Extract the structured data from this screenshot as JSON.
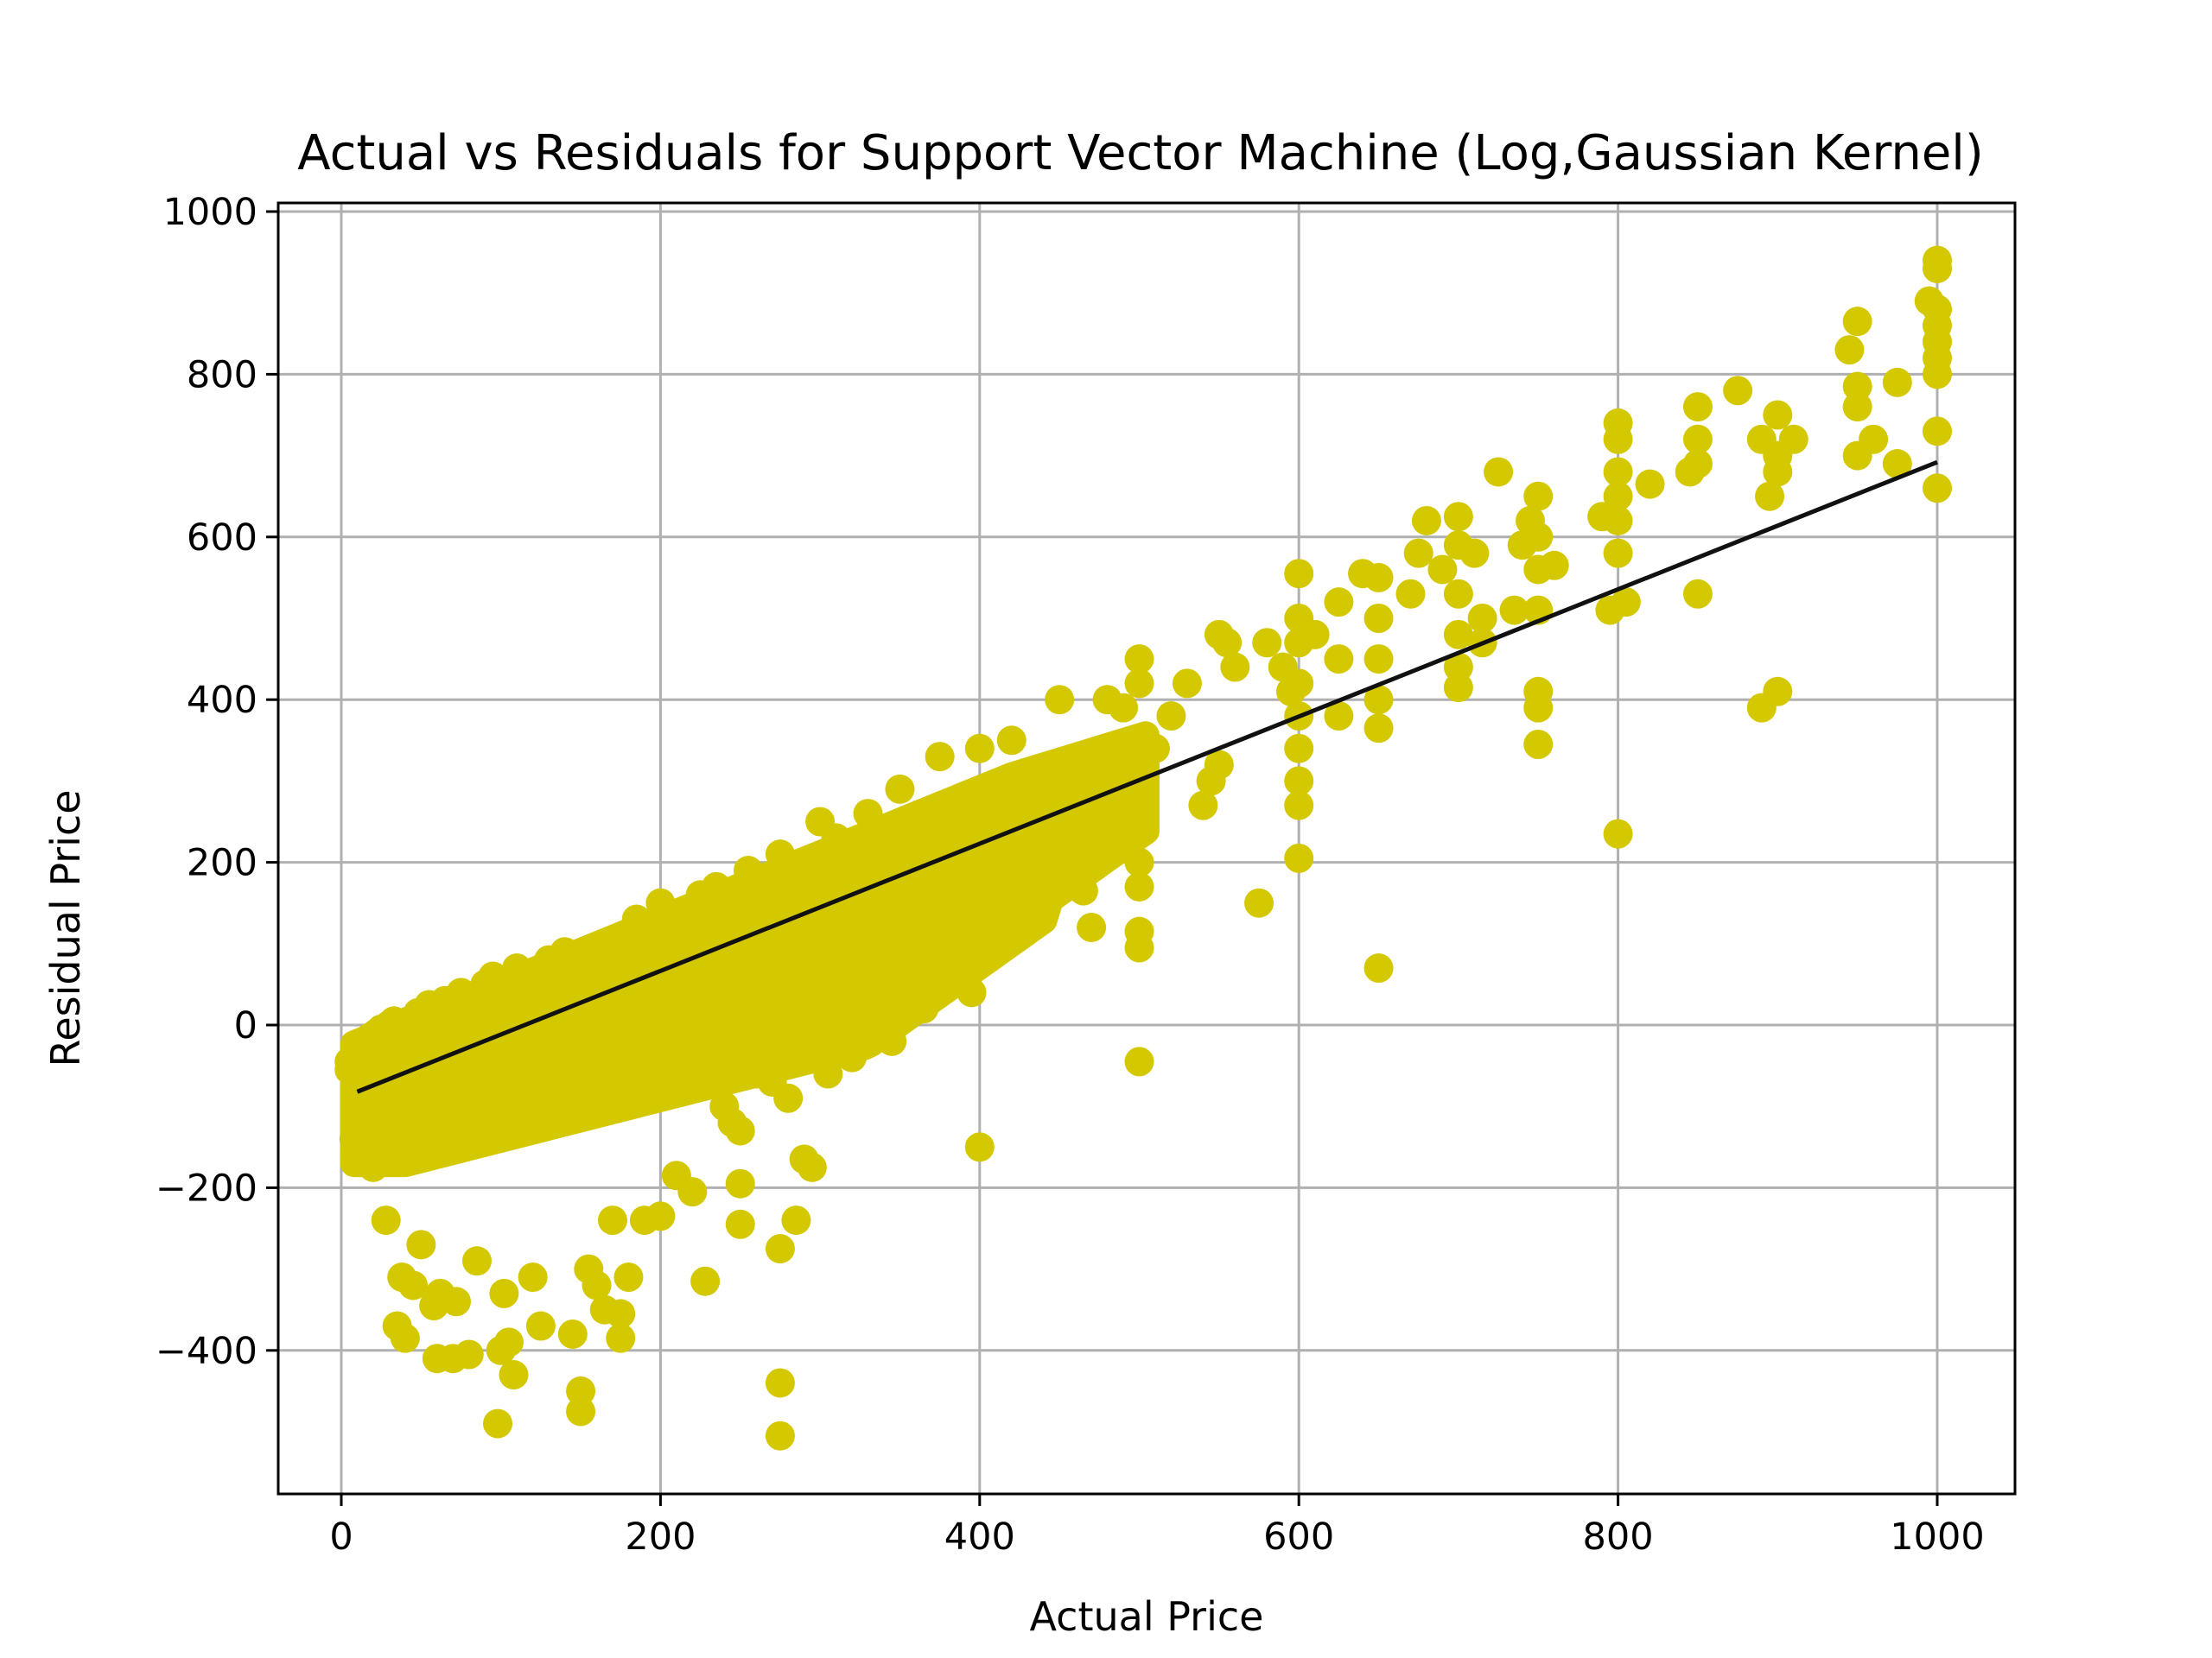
{
  "chart_data": {
    "type": "scatter",
    "title": "Actual vs Residuals for Support Vector Machine (Log,Gaussian Kernel)",
    "xlabel": "Actual Price",
    "ylabel": "Residual Price",
    "xlim": [
      -40,
      1050
    ],
    "ylim": [
      -575,
      1015
    ],
    "xticks": [
      0,
      200,
      400,
      600,
      800,
      1000
    ],
    "yticks": [
      -400,
      -200,
      0,
      200,
      400,
      600,
      800,
      1000
    ],
    "xtick_labels": [
      "0",
      "200",
      "400",
      "600",
      "800",
      "1000"
    ],
    "ytick_labels": [
      "−400",
      "−200",
      "0",
      "200",
      "400",
      "600",
      "800",
      "1000"
    ],
    "grid": true,
    "colors": {
      "points": "#d4c800",
      "fit_line": "#111111",
      "grid": "#b0b0b0"
    },
    "fit_line": {
      "x": [
        10,
        1000
      ],
      "y": [
        -82,
        692
      ]
    },
    "series": [
      {
        "points": [
          [
            5,
            -45
          ],
          [
            5,
            -55
          ],
          [
            8,
            -140
          ],
          [
            10,
            -120
          ],
          [
            12,
            -35
          ],
          [
            15,
            -25
          ],
          [
            18,
            -15
          ],
          [
            20,
            -175
          ],
          [
            22,
            -10
          ],
          [
            25,
            -5
          ],
          [
            28,
            -240
          ],
          [
            30,
            0
          ],
          [
            33,
            5
          ],
          [
            35,
            -370
          ],
          [
            38,
            -310
          ],
          [
            40,
            -385
          ],
          [
            42,
            5
          ],
          [
            45,
            -320
          ],
          [
            48,
            15
          ],
          [
            50,
            -270
          ],
          [
            55,
            25
          ],
          [
            58,
            -345
          ],
          [
            60,
            -410
          ],
          [
            62,
            -330
          ],
          [
            65,
            30
          ],
          [
            70,
            -410
          ],
          [
            72,
            -340
          ],
          [
            75,
            40
          ],
          [
            80,
            -405
          ],
          [
            85,
            -290
          ],
          [
            90,
            50
          ],
          [
            95,
            60
          ],
          [
            98,
            -490
          ],
          [
            100,
            -400
          ],
          [
            102,
            -330
          ],
          [
            105,
            -390
          ],
          [
            108,
            -430
          ],
          [
            110,
            70
          ],
          [
            120,
            -310
          ],
          [
            125,
            -370
          ],
          [
            130,
            80
          ],
          [
            140,
            90
          ],
          [
            145,
            -380
          ],
          [
            150,
            -450
          ],
          [
            150,
            -475
          ],
          [
            155,
            -300
          ],
          [
            160,
            -320
          ],
          [
            165,
            -350
          ],
          [
            170,
            -240
          ],
          [
            175,
            -355
          ],
          [
            175,
            -385
          ],
          [
            180,
            -310
          ],
          [
            185,
            130
          ],
          [
            190,
            -240
          ],
          [
            200,
            150
          ],
          [
            200,
            -235
          ],
          [
            205,
            120
          ],
          [
            210,
            -185
          ],
          [
            220,
            -205
          ],
          [
            225,
            160
          ],
          [
            228,
            -315
          ],
          [
            235,
            170
          ],
          [
            240,
            -100
          ],
          [
            245,
            -120
          ],
          [
            250,
            -130
          ],
          [
            250,
            -195
          ],
          [
            250,
            -245
          ],
          [
            255,
            190
          ],
          [
            260,
            -60
          ],
          [
            265,
            -30
          ],
          [
            270,
            -70
          ],
          [
            275,
            210
          ],
          [
            275,
            -275
          ],
          [
            275,
            -440
          ],
          [
            275,
            -505
          ],
          [
            280,
            -90
          ],
          [
            285,
            -240
          ],
          [
            290,
            -165
          ],
          [
            295,
            -175
          ],
          [
            300,
            250
          ],
          [
            305,
            -60
          ],
          [
            310,
            230
          ],
          [
            320,
            -40
          ],
          [
            330,
            260
          ],
          [
            345,
            -20
          ],
          [
            350,
            290
          ],
          [
            355,
            150
          ],
          [
            365,
            20
          ],
          [
            370,
            60
          ],
          [
            375,
            330
          ],
          [
            390,
            280
          ],
          [
            395,
            40
          ],
          [
            400,
            -150
          ],
          [
            400,
            340
          ],
          [
            410,
            130
          ],
          [
            415,
            160
          ],
          [
            420,
            350
          ],
          [
            430,
            300
          ],
          [
            440,
            250
          ],
          [
            450,
            400
          ],
          [
            455,
            170
          ],
          [
            460,
            200
          ],
          [
            465,
            165
          ],
          [
            470,
            120
          ],
          [
            480,
            400
          ],
          [
            490,
            390
          ],
          [
            495,
            300
          ],
          [
            500,
            450
          ],
          [
            500,
            420
          ],
          [
            500,
            250
          ],
          [
            500,
            200
          ],
          [
            500,
            170
          ],
          [
            500,
            115
          ],
          [
            500,
            95
          ],
          [
            500,
            -45
          ],
          [
            510,
            340
          ],
          [
            520,
            380
          ],
          [
            530,
            420
          ],
          [
            540,
            270
          ],
          [
            545,
            300
          ],
          [
            550,
            480
          ],
          [
            550,
            320
          ],
          [
            555,
            470
          ],
          [
            560,
            440
          ],
          [
            575,
            150
          ],
          [
            580,
            470
          ],
          [
            590,
            440
          ],
          [
            595,
            410
          ],
          [
            600,
            555
          ],
          [
            600,
            500
          ],
          [
            600,
            470
          ],
          [
            600,
            420
          ],
          [
            600,
            380
          ],
          [
            600,
            340
          ],
          [
            600,
            300
          ],
          [
            600,
            270
          ],
          [
            600,
            205
          ],
          [
            610,
            480
          ],
          [
            625,
            520
          ],
          [
            625,
            450
          ],
          [
            625,
            380
          ],
          [
            640,
            555
          ],
          [
            650,
            550
          ],
          [
            650,
            500
          ],
          [
            650,
            450
          ],
          [
            650,
            400
          ],
          [
            650,
            365
          ],
          [
            650,
            70
          ],
          [
            670,
            530
          ],
          [
            675,
            580
          ],
          [
            680,
            620
          ],
          [
            690,
            560
          ],
          [
            700,
            625
          ],
          [
            700,
            590
          ],
          [
            700,
            530
          ],
          [
            700,
            480
          ],
          [
            700,
            440
          ],
          [
            700,
            415
          ],
          [
            710,
            580
          ],
          [
            715,
            500
          ],
          [
            715,
            470
          ],
          [
            725,
            680
          ],
          [
            735,
            510
          ],
          [
            740,
            590
          ],
          [
            745,
            620
          ],
          [
            750,
            650
          ],
          [
            750,
            600
          ],
          [
            750,
            560
          ],
          [
            750,
            510
          ],
          [
            750,
            410
          ],
          [
            750,
            390
          ],
          [
            750,
            345
          ],
          [
            760,
            565
          ],
          [
            790,
            625
          ],
          [
            795,
            510
          ],
          [
            800,
            740
          ],
          [
            800,
            720
          ],
          [
            800,
            680
          ],
          [
            800,
            650
          ],
          [
            800,
            620
          ],
          [
            800,
            580
          ],
          [
            800,
            235
          ],
          [
            805,
            520
          ],
          [
            820,
            665
          ],
          [
            845,
            680
          ],
          [
            850,
            760
          ],
          [
            850,
            720
          ],
          [
            850,
            690
          ],
          [
            850,
            530
          ],
          [
            875,
            780
          ],
          [
            890,
            720
          ],
          [
            890,
            390
          ],
          [
            895,
            650
          ],
          [
            900,
            750
          ],
          [
            900,
            700
          ],
          [
            900,
            680
          ],
          [
            900,
            410
          ],
          [
            910,
            720
          ],
          [
            945,
            830
          ],
          [
            950,
            865
          ],
          [
            950,
            785
          ],
          [
            950,
            760
          ],
          [
            950,
            700
          ],
          [
            960,
            720
          ],
          [
            975,
            790
          ],
          [
            975,
            690
          ],
          [
            995,
            890
          ],
          [
            1000,
            940
          ],
          [
            1000,
            930
          ],
          [
            1000,
            880
          ],
          [
            1000,
            860
          ],
          [
            1000,
            840
          ],
          [
            1000,
            820
          ],
          [
            1000,
            800
          ],
          [
            1000,
            730
          ],
          [
            1000,
            660
          ]
        ]
      }
    ]
  }
}
